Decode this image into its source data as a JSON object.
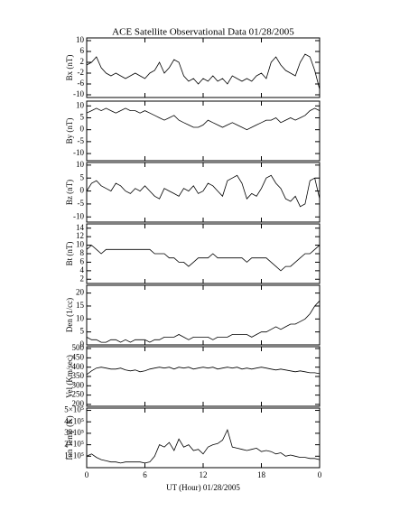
{
  "chart_data": {
    "type": "line",
    "title": "ACE Satellite Observational Data   01/28/2005",
    "xlabel": "UT (Hour)   01/28/2005",
    "color": "#000000",
    "xlim": [
      0,
      24
    ],
    "xticks": [
      0,
      6,
      12,
      18,
      {
        "value": 24,
        "label": "0"
      }
    ],
    "x": [
      0,
      0.5,
      1,
      1.5,
      2,
      2.5,
      3,
      3.5,
      4,
      4.5,
      5,
      5.5,
      6,
      6.5,
      7,
      7.5,
      8,
      8.5,
      9,
      9.5,
      10,
      10.5,
      11,
      11.5,
      12,
      12.5,
      13,
      13.5,
      14,
      14.5,
      15,
      15.5,
      16,
      16.5,
      17,
      17.5,
      18,
      18.5,
      19,
      19.5,
      20,
      20.5,
      21,
      21.5,
      22,
      22.5,
      23,
      23.5,
      24
    ],
    "panels": [
      {
        "ylabel": "Bx (nT)",
        "ylim": [
          -11,
          11
        ],
        "yticks": [
          -10,
          -6,
          -2,
          2,
          6,
          10
        ],
        "values": [
          1,
          2,
          4,
          0,
          -2,
          -3,
          -2,
          -3,
          -4,
          -3,
          -2,
          -3,
          -4,
          -2,
          -1,
          2,
          -2,
          0,
          3,
          2,
          -3,
          -5,
          -4,
          -6,
          -4,
          -5,
          -3,
          -5,
          -4,
          -6,
          -3,
          -4,
          -5,
          -4,
          -5,
          -3,
          -2,
          -4,
          2,
          4,
          1,
          -1,
          -2,
          -3,
          2,
          5,
          4,
          -1,
          -8
        ]
      },
      {
        "ylabel": "By (nT)",
        "ylim": [
          -13,
          12
        ],
        "yticks": [
          -10,
          -5,
          0,
          5,
          10
        ],
        "values": [
          7,
          8,
          9,
          8,
          9,
          8,
          7,
          8,
          9,
          8,
          8,
          7,
          8,
          7,
          6,
          5,
          4,
          5,
          6,
          4,
          3,
          2,
          1,
          1,
          2,
          4,
          3,
          2,
          1,
          2,
          3,
          2,
          1,
          0,
          1,
          2,
          3,
          4,
          4,
          5,
          3,
          4,
          5,
          4,
          5,
          6,
          8,
          9,
          8
        ]
      },
      {
        "ylabel": "Bz (nT)",
        "ylim": [
          -12,
          11
        ],
        "yticks": [
          -10,
          -5,
          0,
          5,
          10
        ],
        "values": [
          0,
          3,
          4,
          2,
          1,
          0,
          3,
          2,
          0,
          -1,
          1,
          0,
          2,
          0,
          -2,
          -3,
          1,
          0,
          -1,
          -2,
          1,
          0,
          2,
          -1,
          0,
          3,
          2,
          0,
          -2,
          4,
          5,
          6,
          3,
          -3,
          -1,
          -2,
          1,
          5,
          6,
          3,
          1,
          -3,
          -4,
          -2,
          -6,
          -5,
          4,
          5,
          -3
        ]
      },
      {
        "ylabel": "Bt (nT)",
        "ylim": [
          1,
          15
        ],
        "yticks": [
          2,
          4,
          6,
          8,
          10,
          12,
          14
        ],
        "values": [
          9,
          10,
          9,
          8,
          9,
          9,
          9,
          9,
          9,
          9,
          9,
          9,
          9,
          9,
          8,
          8,
          8,
          7,
          7,
          6,
          6,
          5,
          6,
          7,
          7,
          7,
          8,
          7,
          7,
          7,
          7,
          7,
          7,
          6,
          7,
          7,
          7,
          7,
          6,
          5,
          4,
          5,
          5,
          6,
          7,
          8,
          8,
          9,
          10
        ]
      },
      {
        "ylabel": "Den (1/cc)",
        "ylim": [
          0,
          23
        ],
        "yticks": [
          0,
          5,
          10,
          15,
          20
        ],
        "values": [
          3,
          2,
          2,
          1,
          1,
          2,
          2,
          1,
          2,
          1,
          2,
          2,
          2,
          1,
          2,
          2,
          3,
          3,
          3,
          4,
          3,
          2,
          3,
          3,
          3,
          3,
          2,
          3,
          3,
          3,
          4,
          4,
          4,
          4,
          3,
          4,
          5,
          5,
          6,
          7,
          6,
          7,
          8,
          8,
          9,
          10,
          12,
          15,
          17
        ]
      },
      {
        "ylabel": "Vel (Km/sec)",
        "ylim": [
          190,
          510
        ],
        "yticks": [
          200,
          250,
          300,
          350,
          400,
          450,
          500
        ],
        "values": [
          360,
          380,
          395,
          400,
          395,
          390,
          390,
          395,
          385,
          380,
          385,
          375,
          380,
          390,
          395,
          400,
          395,
          400,
          390,
          400,
          395,
          400,
          390,
          395,
          400,
          395,
          400,
          390,
          395,
          400,
          395,
          400,
          390,
          395,
          390,
          395,
          400,
          395,
          390,
          385,
          390,
          385,
          380,
          375,
          380,
          375,
          370,
          370,
          365
        ]
      },
      {
        "ylabel": "Ion Temp (K)",
        "ylim": [
          0,
          520000
        ],
        "yticks": [
          {
            "value": 100000,
            "label": "1×10⁵"
          },
          {
            "value": 200000,
            "label": "2×10⁵"
          },
          {
            "value": 300000,
            "label": "3×10⁵"
          },
          {
            "value": 400000,
            "label": "4×10⁵"
          },
          {
            "value": 500000,
            "label": "5×10⁵"
          }
        ],
        "values": [
          100000,
          120000,
          90000,
          70000,
          60000,
          50000,
          50000,
          40000,
          50000,
          50000,
          50000,
          50000,
          40000,
          50000,
          100000,
          200000,
          180000,
          220000,
          150000,
          250000,
          180000,
          200000,
          150000,
          160000,
          120000,
          180000,
          200000,
          210000,
          240000,
          330000,
          180000,
          170000,
          160000,
          150000,
          160000,
          170000,
          140000,
          150000,
          140000,
          120000,
          130000,
          100000,
          110000,
          100000,
          90000,
          90000,
          80000,
          80000,
          70000
        ]
      }
    ]
  }
}
